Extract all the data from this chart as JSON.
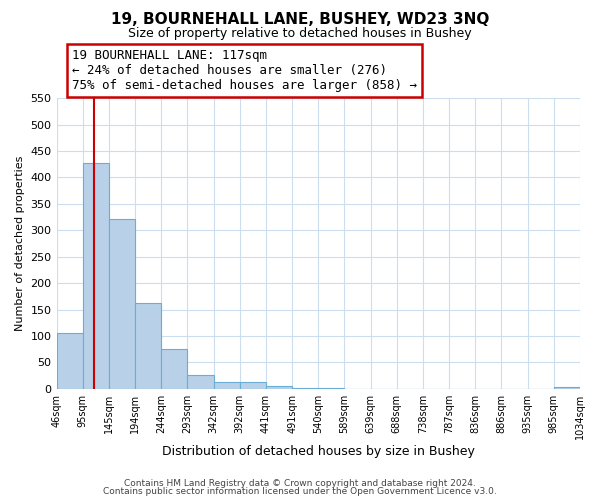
{
  "title": "19, BOURNEHALL LANE, BUSHEY, WD23 3NQ",
  "subtitle": "Size of property relative to detached houses in Bushey",
  "xlabel": "Distribution of detached houses by size in Bushey",
  "ylabel": "Number of detached properties",
  "bar_values": [
    105,
    428,
    322,
    163,
    75,
    27,
    13,
    13,
    5,
    2,
    2,
    0,
    0,
    0,
    0,
    0,
    0,
    0,
    0,
    3
  ],
  "tick_labels": [
    "46sqm",
    "95sqm",
    "145sqm",
    "194sqm",
    "244sqm",
    "293sqm",
    "342sqm",
    "392sqm",
    "441sqm",
    "491sqm",
    "540sqm",
    "589sqm",
    "639sqm",
    "688sqm",
    "738sqm",
    "787sqm",
    "836sqm",
    "886sqm",
    "935sqm",
    "985sqm",
    "1034sqm"
  ],
  "bar_color": "#b8d0e8",
  "bar_edge_color": "#6aaed6",
  "ylim": [
    0,
    550
  ],
  "yticks": [
    0,
    50,
    100,
    150,
    200,
    250,
    300,
    350,
    400,
    450,
    500,
    550
  ],
  "annotation_title": "19 BOURNEHALL LANE: 117sqm",
  "annotation_line1": "← 24% of detached houses are smaller (276)",
  "annotation_line2": "75% of semi-detached houses are larger (858) →",
  "annotation_box_color": "#ffffff",
  "annotation_box_edge": "#cc0000",
  "property_line_color": "#cc0000",
  "footer1": "Contains HM Land Registry data © Crown copyright and database right 2024.",
  "footer2": "Contains public sector information licensed under the Open Government Licence v3.0.",
  "background_color": "#ffffff",
  "grid_color": "#ccdded"
}
